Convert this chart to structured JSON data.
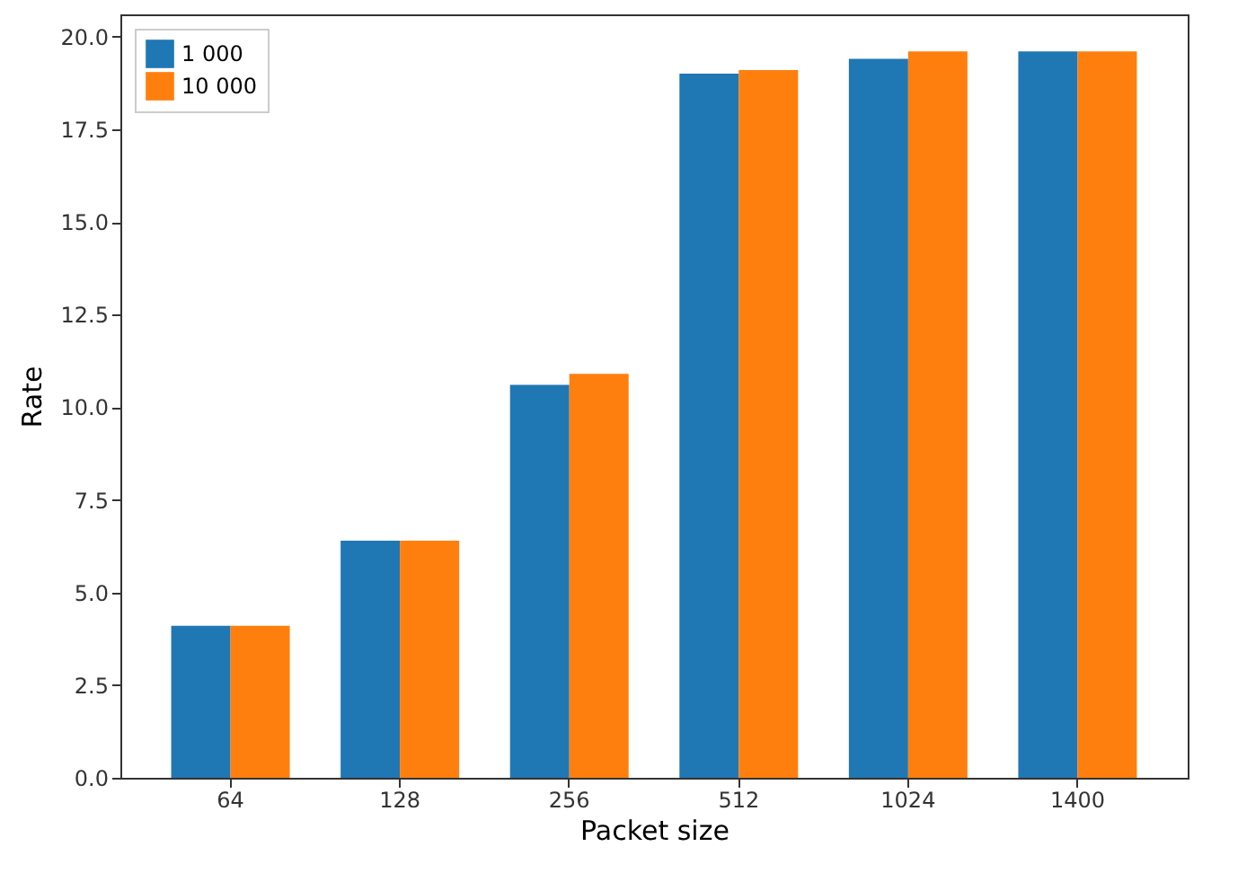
{
  "chart_data": {
    "type": "bar",
    "xlabel": "Packet size",
    "ylabel": "Rate",
    "categories": [
      "64",
      "128",
      "256",
      "512",
      "1024",
      "1400"
    ],
    "series": [
      {
        "name": "1 000",
        "color": "#1f77b4",
        "values": [
          4.1,
          6.4,
          10.6,
          19.0,
          19.4,
          19.6
        ]
      },
      {
        "name": "10 000",
        "color": "#ff7f0e",
        "values": [
          4.1,
          6.4,
          10.9,
          19.1,
          19.6,
          19.6
        ]
      }
    ],
    "ylim": [
      0,
      20.6
    ],
    "yticks": [
      {
        "value": 0,
        "label": "0.0"
      },
      {
        "value": 2.5,
        "label": "2.5"
      },
      {
        "value": 5,
        "label": "5.0"
      },
      {
        "value": 7.5,
        "label": "7.5"
      },
      {
        "value": 10,
        "label": "10.0"
      },
      {
        "value": 12.5,
        "label": "12.5"
      },
      {
        "value": 15,
        "label": "15.0"
      },
      {
        "value": 17.5,
        "label": "17.5"
      },
      {
        "value": 20,
        "label": "20.0"
      }
    ],
    "grid": false,
    "legend": "top left"
  }
}
